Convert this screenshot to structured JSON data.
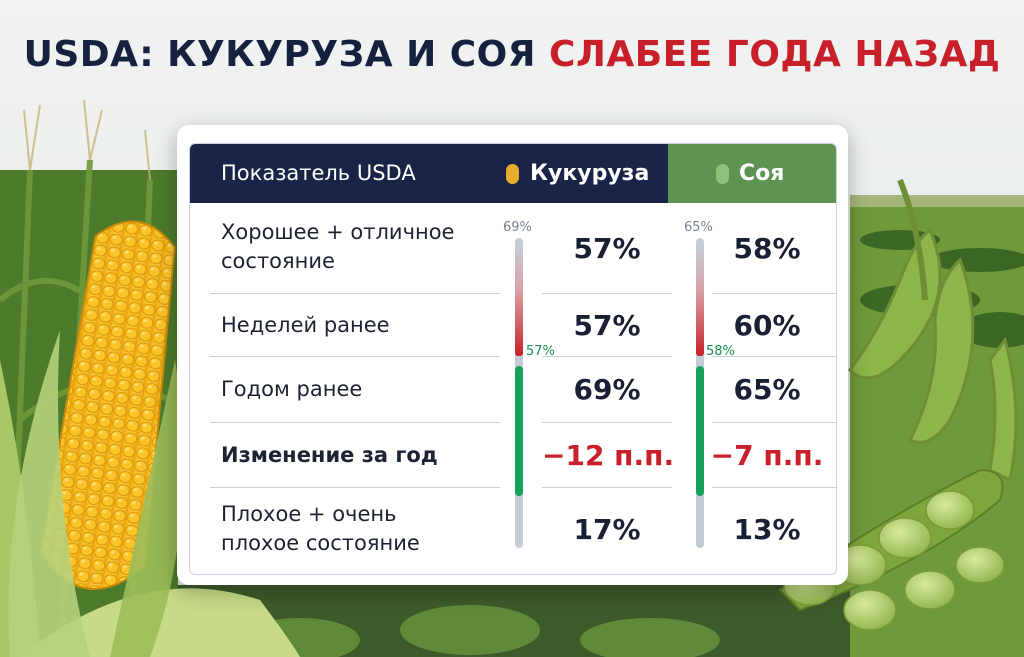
{
  "title": {
    "part1": "USDA: КУКУРУЗА И СОЯ ",
    "part2": "СЛАБЕЕ ГОДА НАЗАД"
  },
  "colors": {
    "navy": "#1a2447",
    "soy_green": "#5e9451",
    "red": "#c8202a",
    "green_bar": "#17a05a",
    "corn_yellow": "#e7ad2b"
  },
  "table": {
    "header": {
      "indicator": "Показатель USDA",
      "corn": "Кукуруза",
      "soy": "Соя"
    },
    "rows": [
      {
        "label_line1": "Хорошее + отличное",
        "label_line2": "состояние",
        "corn": "57%",
        "soy": "58%"
      },
      {
        "label": "Неделей ранее",
        "corn": "57%",
        "soy": "60%"
      },
      {
        "label": "Годом ранее",
        "corn": "69%",
        "soy": "65%"
      },
      {
        "label": "Изменение за год",
        "corn": "−12 п.п.",
        "soy": "−7 п.п."
      },
      {
        "label_line1": "Плохое + очень",
        "label_line2": "плохое состояние",
        "corn": "17%",
        "soy": "13%"
      }
    ],
    "bars": {
      "corn": {
        "top_label": "69%",
        "current_label": "57%",
        "previous": 69,
        "current": 57
      },
      "soy": {
        "top_label": "65%",
        "current_label": "58%",
        "previous": 65,
        "current": 58
      }
    }
  }
}
